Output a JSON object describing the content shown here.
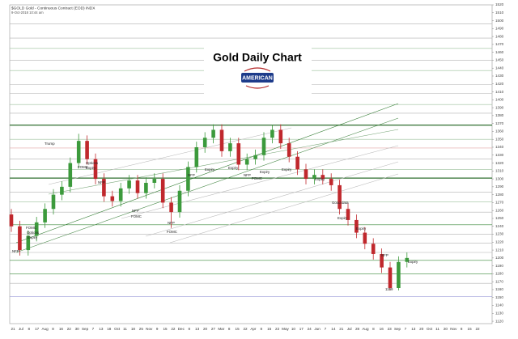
{
  "chart_data": {
    "type": "candlestick",
    "title": "Gold Daily Chart",
    "logo_text": "AMERICAN",
    "header": "$GOLD Gold - Continuous Contract (EOD) INDX",
    "subheader": "9-Oct-2018 10:44 am",
    "up_color": "#3c9a3c",
    "down_color": "#c0282d",
    "open": [
      1255,
      1240,
      1210,
      1228,
      1245,
      1262,
      1280,
      1290,
      1320,
      1348,
      1325,
      1300,
      1278,
      1272,
      1288,
      1298,
      1282,
      1295,
      1300,
      1270,
      1258,
      1285,
      1315,
      1340,
      1352,
      1362,
      1335,
      1345,
      1318,
      1325,
      1330,
      1352,
      1362,
      1345,
      1328,
      1312,
      1300,
      1305,
      1300,
      1292,
      1262,
      1248,
      1232,
      1218,
      1205,
      1188,
      1162,
      1195
    ],
    "high": [
      1262,
      1247,
      1235,
      1252,
      1269,
      1287,
      1297,
      1327,
      1357,
      1355,
      1332,
      1307,
      1285,
      1295,
      1305,
      1305,
      1302,
      1307,
      1307,
      1277,
      1292,
      1322,
      1347,
      1359,
      1369,
      1369,
      1352,
      1352,
      1332,
      1337,
      1359,
      1368,
      1369,
      1352,
      1335,
      1319,
      1312,
      1312,
      1307,
      1299,
      1269,
      1255,
      1239,
      1225,
      1212,
      1195,
      1202,
      1207
    ],
    "low": [
      1233,
      1203,
      1203,
      1221,
      1238,
      1255,
      1273,
      1283,
      1313,
      1318,
      1293,
      1271,
      1265,
      1265,
      1281,
      1275,
      1275,
      1288,
      1263,
      1238,
      1251,
      1278,
      1308,
      1333,
      1345,
      1328,
      1328,
      1311,
      1311,
      1318,
      1323,
      1345,
      1338,
      1321,
      1305,
      1293,
      1293,
      1293,
      1285,
      1255,
      1241,
      1225,
      1211,
      1198,
      1181,
      1159,
      1159,
      1188
    ],
    "close": [
      1240,
      1210,
      1228,
      1245,
      1262,
      1280,
      1290,
      1320,
      1348,
      1325,
      1300,
      1278,
      1272,
      1288,
      1298,
      1282,
      1295,
      1300,
      1270,
      1258,
      1285,
      1315,
      1340,
      1352,
      1362,
      1335,
      1345,
      1318,
      1325,
      1330,
      1352,
      1362,
      1345,
      1328,
      1312,
      1300,
      1305,
      1300,
      1292,
      1262,
      1248,
      1232,
      1218,
      1205,
      1188,
      1162,
      1195,
      1200
    ],
    "ylim": [
      1117,
      1520
    ],
    "yticks": [
      1120,
      1130,
      1140,
      1150,
      1160,
      1170,
      1180,
      1190,
      1200,
      1210,
      1220,
      1230,
      1240,
      1250,
      1260,
      1270,
      1280,
      1290,
      1300,
      1310,
      1320,
      1330,
      1340,
      1350,
      1360,
      1370,
      1380,
      1390,
      1400,
      1410,
      1420,
      1430,
      1440,
      1450,
      1460,
      1470,
      1480,
      1490,
      1500,
      1510,
      1520
    ],
    "horizontal_lines": [
      {
        "value": 1496,
        "color": "#b0b0b0"
      },
      {
        "value": 1478,
        "color": "#b0b0b0"
      },
      {
        "value": 1465,
        "color": "#9bbf9b"
      },
      {
        "value": 1450,
        "color": "#b0b0b0"
      },
      {
        "value": 1437,
        "color": "#9bbf9b"
      },
      {
        "value": 1419,
        "color": "#b0b0b0"
      },
      {
        "value": 1408,
        "color": "#b0b0b0"
      },
      {
        "value": 1394,
        "color": "#9bbf9b"
      },
      {
        "value": 1383,
        "color": "#b0b0b0"
      },
      {
        "value": 1368,
        "color": "#2f6f2f"
      },
      {
        "value": 1350,
        "color": "#9bbf9b"
      },
      {
        "value": 1339,
        "color": "#e3a3a3"
      },
      {
        "value": 1325,
        "color": "#b0b0b0"
      },
      {
        "value": 1312,
        "color": "#9bbf9b"
      },
      {
        "value": 1301,
        "color": "#2f6f2f"
      },
      {
        "value": 1283,
        "color": "#b0b0b0"
      },
      {
        "value": 1271,
        "color": "#9bbf9b"
      },
      {
        "value": 1258,
        "color": "#b0b0b0"
      },
      {
        "value": 1242,
        "color": "#3a8a3a"
      },
      {
        "value": 1230,
        "color": "#b0b0b0"
      },
      {
        "value": 1219,
        "color": "#b0b0b0"
      },
      {
        "value": 1207,
        "color": "#b0b0b0"
      },
      {
        "value": 1197,
        "color": "#3a8a3a"
      },
      {
        "value": 1180,
        "color": "#3a8a3a"
      },
      {
        "value": 1168,
        "color": "#b0b0b0"
      },
      {
        "value": 1151,
        "color": "#8a8ad0"
      }
    ],
    "annotations": [
      "Trump",
      "FOMC",
      "Options",
      "Expiry",
      "NFP",
      "NFP",
      "FOMC",
      "Options",
      "Expiry",
      "NFP",
      "FOMC",
      "FOMC",
      "NFP",
      "NFP",
      "Expiry",
      "Expiry",
      "NFP",
      "FOMC",
      "Expiry",
      "Expiry",
      "Expiry",
      "Good data",
      "Expiry",
      "Expiry",
      "NFP",
      "Expiry",
      "1159"
    ],
    "x_labels": [
      "21",
      "Jul",
      "8",
      "17",
      "Aug",
      "8",
      "16",
      "22",
      "30",
      "Sep",
      "7",
      "13",
      "18",
      "Oct",
      "11",
      "18",
      "25",
      "Nov",
      "9",
      "15",
      "22",
      "Dec",
      "8",
      "13",
      "20",
      "27",
      "Mar",
      "8",
      "15",
      "22",
      "Apr",
      "8",
      "15",
      "22",
      "May",
      "10",
      "17",
      "24",
      "Jun",
      "7",
      "14",
      "21",
      "Jul",
      "28",
      "Aug",
      "8",
      "16",
      "23",
      "Sep",
      "7",
      "13",
      "20",
      "Oct",
      "11",
      "20",
      "Nov",
      "8",
      "15",
      "22"
    ]
  }
}
